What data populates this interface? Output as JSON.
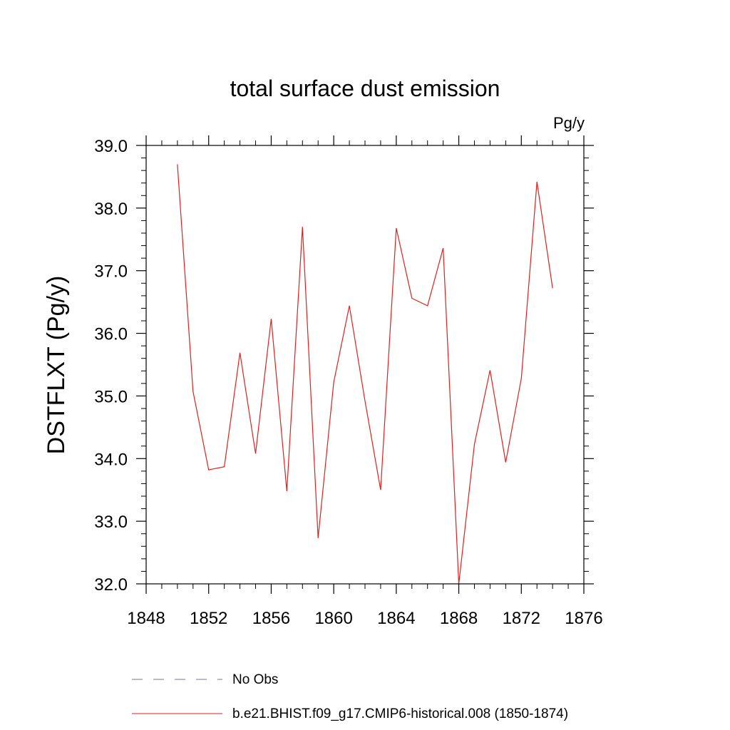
{
  "chart_data": {
    "type": "line",
    "title": "total surface dust emission",
    "units": "Pg/y",
    "ylabel": "DSTFLXT  (Pg/y)",
    "xlabel": "",
    "xlim": [
      1848,
      1876
    ],
    "ylim": [
      32.0,
      39.0
    ],
    "xticks": [
      "1848",
      "1852",
      "1856",
      "1860",
      "1864",
      "1868",
      "1872",
      "1876"
    ],
    "yticks": [
      "32.0",
      "33.0",
      "34.0",
      "35.0",
      "36.0",
      "37.0",
      "38.0",
      "39.0"
    ],
    "series": [
      {
        "name": "b.e21.BHIST.f09_g17.CMIP6-historical.008 (1850-1874)",
        "color": "#e0201c",
        "style": "solid",
        "x": [
          1850,
          1851,
          1852,
          1853,
          1854,
          1855,
          1856,
          1857,
          1858,
          1859,
          1860,
          1861,
          1862,
          1863,
          1864,
          1865,
          1866,
          1867,
          1868,
          1869,
          1870,
          1871,
          1872,
          1873,
          1874
        ],
        "values": [
          38.7,
          35.07,
          33.82,
          33.87,
          35.69,
          34.08,
          36.23,
          33.48,
          37.7,
          32.73,
          35.22,
          36.44,
          34.92,
          33.5,
          37.68,
          36.56,
          36.44,
          37.36,
          32.0,
          34.23,
          35.41,
          33.94,
          35.28,
          38.42,
          36.72
        ]
      }
    ],
    "legend": [
      {
        "label": "No Obs",
        "color": "#7a6fb5",
        "style": "dashed"
      },
      {
        "label": "b.e21.BHIST.f09_g17.CMIP6-historical.008 (1850-1874)",
        "color": "#e0201c",
        "style": "solid"
      }
    ]
  }
}
